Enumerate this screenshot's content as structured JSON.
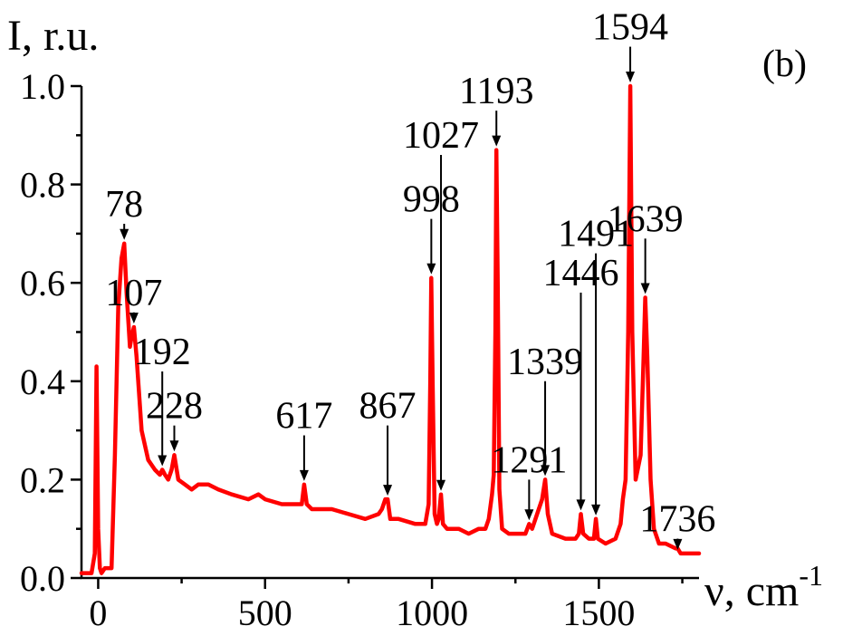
{
  "chart_data": {
    "type": "line",
    "panel_tag": "(b)",
    "ylabel": "I, r.u.",
    "xlabel": "ν, cm",
    "xlabel_sup": "-1",
    "xlim": [
      -50,
      1800
    ],
    "ylim": [
      0,
      1.0
    ],
    "x_ticks": [
      0,
      500,
      1000,
      1500
    ],
    "x_tick_labels": [
      "0",
      "500",
      "1000",
      "1500"
    ],
    "y_ticks": [
      0.0,
      0.2,
      0.4,
      0.6,
      0.8,
      1.0
    ],
    "y_tick_labels": [
      "0.0",
      "0.2",
      "0.4",
      "0.6",
      "0.8",
      "1.0"
    ],
    "color": "#ff0000",
    "series": [
      {
        "x": [
          -50,
          -20,
          -10,
          -5,
          0,
          5,
          10,
          20,
          40,
          50,
          60,
          70,
          78,
          85,
          95,
          100,
          107,
          115,
          130,
          150,
          170,
          185,
          192,
          200,
          210,
          220,
          228,
          240,
          260,
          280,
          300,
          330,
          360,
          400,
          450,
          480,
          500,
          550,
          600,
          610,
          617,
          625,
          640,
          700,
          750,
          800,
          840,
          850,
          860,
          867,
          875,
          900,
          950,
          980,
          990,
          995,
          998,
          1002,
          1008,
          1015,
          1020,
          1027,
          1033,
          1045,
          1080,
          1110,
          1140,
          1160,
          1170,
          1180,
          1185,
          1190,
          1193,
          1197,
          1202,
          1210,
          1230,
          1260,
          1280,
          1291,
          1300,
          1315,
          1330,
          1339,
          1347,
          1360,
          1400,
          1430,
          1440,
          1446,
          1453,
          1470,
          1485,
          1491,
          1497,
          1520,
          1550,
          1565,
          1572,
          1580,
          1588,
          1594,
          1600,
          1610,
          1625,
          1634,
          1639,
          1645,
          1655,
          1665,
          1680,
          1700,
          1730,
          1736,
          1745,
          1770,
          1800
        ],
        "y": [
          0.01,
          0.01,
          0.05,
          0.43,
          0.1,
          0.02,
          0.01,
          0.02,
          0.02,
          0.25,
          0.55,
          0.65,
          0.68,
          0.58,
          0.47,
          0.49,
          0.51,
          0.45,
          0.3,
          0.24,
          0.22,
          0.21,
          0.22,
          0.21,
          0.2,
          0.22,
          0.25,
          0.2,
          0.19,
          0.18,
          0.19,
          0.19,
          0.18,
          0.17,
          0.16,
          0.17,
          0.16,
          0.15,
          0.15,
          0.15,
          0.19,
          0.15,
          0.14,
          0.14,
          0.13,
          0.12,
          0.13,
          0.14,
          0.16,
          0.16,
          0.12,
          0.12,
          0.11,
          0.11,
          0.15,
          0.4,
          0.61,
          0.4,
          0.13,
          0.11,
          0.12,
          0.17,
          0.11,
          0.1,
          0.1,
          0.09,
          0.1,
          0.1,
          0.12,
          0.17,
          0.21,
          0.5,
          0.87,
          0.6,
          0.18,
          0.1,
          0.09,
          0.09,
          0.09,
          0.11,
          0.1,
          0.13,
          0.16,
          0.2,
          0.13,
          0.09,
          0.08,
          0.08,
          0.09,
          0.13,
          0.09,
          0.08,
          0.08,
          0.12,
          0.08,
          0.07,
          0.08,
          0.11,
          0.16,
          0.2,
          0.5,
          1.0,
          0.5,
          0.2,
          0.25,
          0.45,
          0.57,
          0.45,
          0.2,
          0.1,
          0.07,
          0.07,
          0.06,
          0.06,
          0.05,
          0.05,
          0.05
        ]
      }
    ],
    "annotations": [
      {
        "label": "78",
        "x": 78,
        "y_tip": 0.68,
        "y_tail": 0.72
      },
      {
        "label": "107",
        "x": 107,
        "y_tip": 0.51,
        "y_tail": 0.54
      },
      {
        "label": "192",
        "x": 192,
        "y_tip": 0.22,
        "y_tail": 0.42
      },
      {
        "label": "228",
        "x": 228,
        "y_tip": 0.25,
        "y_tail": 0.31
      },
      {
        "label": "617",
        "x": 617,
        "y_tip": 0.19,
        "y_tail": 0.29
      },
      {
        "label": "867",
        "x": 867,
        "y_tip": 0.16,
        "y_tail": 0.31
      },
      {
        "label": "998",
        "x": 998,
        "y_tip": 0.61,
        "y_tail": 0.73
      },
      {
        "label": "1027",
        "x": 1027,
        "y_tip": 0.17,
        "y_tail": 0.86
      },
      {
        "label": "1193",
        "x": 1193,
        "y_tip": 0.87,
        "y_tail": 0.95
      },
      {
        "label": "1291",
        "x": 1291,
        "y_tip": 0.11,
        "y_tail": 0.2
      },
      {
        "label": "1339",
        "x": 1339,
        "y_tip": 0.2,
        "y_tail": 0.4
      },
      {
        "label": "1446",
        "x": 1446,
        "y_tip": 0.13,
        "y_tail": 0.58
      },
      {
        "label": "1491",
        "x": 1491,
        "y_tip": 0.12,
        "y_tail": 0.66
      },
      {
        "label": "1594",
        "x": 1594,
        "y_tip": 1.0,
        "y_tail": 1.08
      },
      {
        "label": "1639",
        "x": 1639,
        "y_tip": 0.57,
        "y_tail": 0.69
      },
      {
        "label": "1736",
        "x": 1736,
        "y_tip": 0.05,
        "y_tail": 0.08
      }
    ]
  }
}
